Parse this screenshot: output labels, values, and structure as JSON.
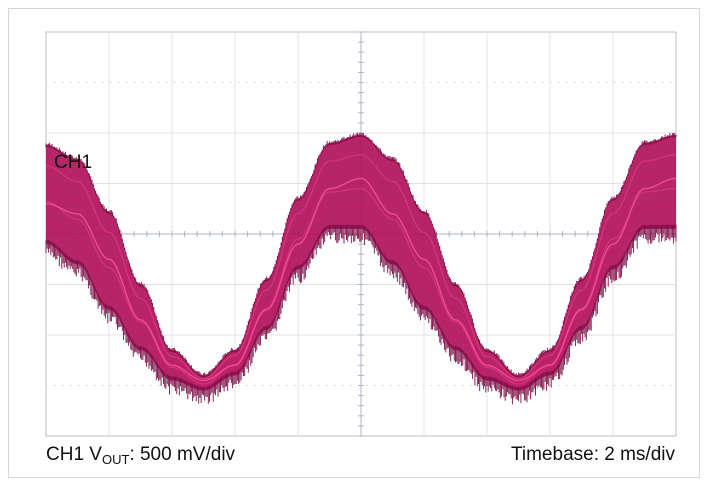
{
  "chart_data": {
    "type": "line",
    "channel_label": "CH1",
    "footer": {
      "channel": "CH1",
      "signal_main": "V",
      "signal_sub": "OUT",
      "volts_per_div": ": 500 mV/div",
      "timebase": "Timebase: 2 ms/div"
    },
    "grid": true,
    "divisions": {
      "x": 10,
      "y": 8
    },
    "xlim": [
      0,
      20
    ],
    "ylim": [
      -2,
      2
    ],
    "xunit": "ms",
    "yunit": "V",
    "series": [
      {
        "description_free": true,
        "color": "#b0125a",
        "x": [
          0,
          1,
          2,
          3,
          4,
          5,
          6,
          7,
          8,
          9,
          10,
          11,
          12,
          13,
          14,
          15,
          16,
          17,
          18,
          19,
          20
        ],
        "y_upper": [
          0.88,
          0.74,
          0.22,
          -0.5,
          -1.15,
          -1.4,
          -1.15,
          -0.45,
          0.35,
          0.9,
          0.98,
          0.74,
          0.22,
          -0.5,
          -1.15,
          -1.4,
          -1.15,
          -0.45,
          0.35,
          0.9,
          0.98
        ],
        "y_lower": [
          -0.1,
          -0.3,
          -0.75,
          -1.15,
          -1.45,
          -1.55,
          -1.4,
          -0.95,
          -0.35,
          0.05,
          0.05,
          -0.3,
          -0.75,
          -1.15,
          -1.45,
          -1.55,
          -1.4,
          -0.95,
          -0.35,
          0.05,
          0.05
        ],
        "y_center": [
          0.3,
          0.2,
          -0.25,
          -0.85,
          -1.3,
          -1.45,
          -1.3,
          -0.75,
          -0.1,
          0.45,
          0.55,
          0.2,
          -0.25,
          -0.85,
          -1.3,
          -1.45,
          -1.3,
          -0.75,
          -0.1,
          0.45,
          0.55
        ]
      }
    ]
  }
}
